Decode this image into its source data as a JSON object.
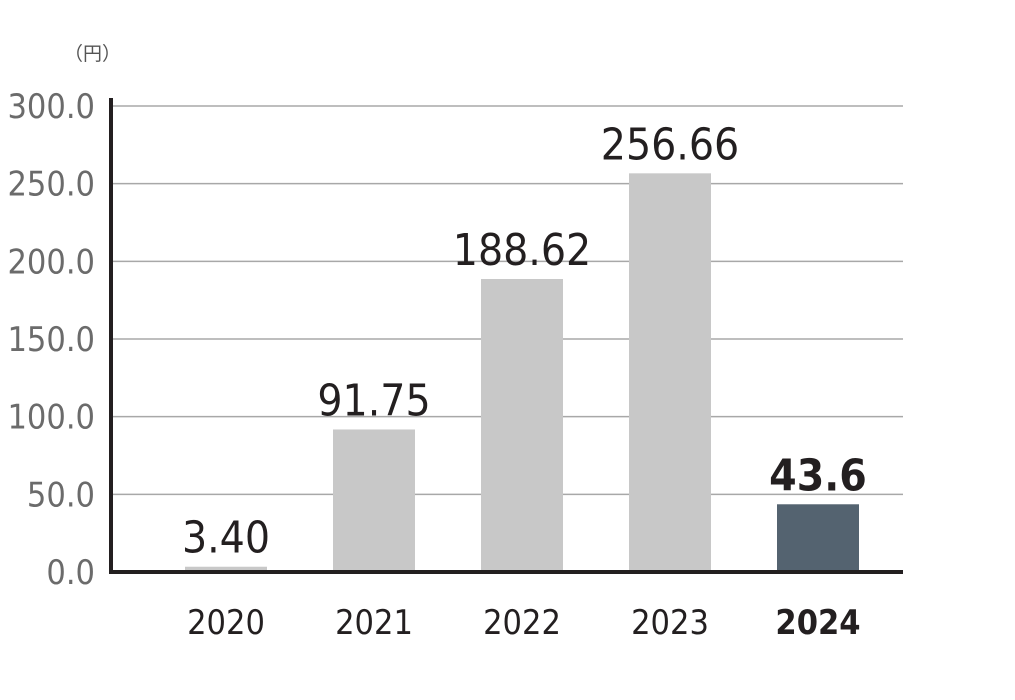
{
  "chart_data": {
    "type": "bar",
    "unit": "（円）",
    "categories": [
      "2020",
      "2021",
      "2022",
      "2023",
      "2024"
    ],
    "values": [
      3.4,
      91.75,
      188.62,
      256.66,
      43.6
    ],
    "data_labels": [
      "3.40",
      "91.75",
      "188.62",
      "256.66",
      "43.6"
    ],
    "highlight_index": 4,
    "ylim": [
      0,
      300
    ],
    "yticks": [
      0,
      50,
      100,
      150,
      200,
      250,
      300
    ],
    "ytick_labels": [
      "0.0",
      "50.0",
      "100.0",
      "150.0",
      "200.0",
      "250.0",
      "300.0"
    ],
    "grid": true,
    "colors": {
      "bar": "#c8c8c8",
      "highlight_bar": "#546370",
      "grid": "#a8a8a8",
      "axis": "#231f20"
    }
  }
}
